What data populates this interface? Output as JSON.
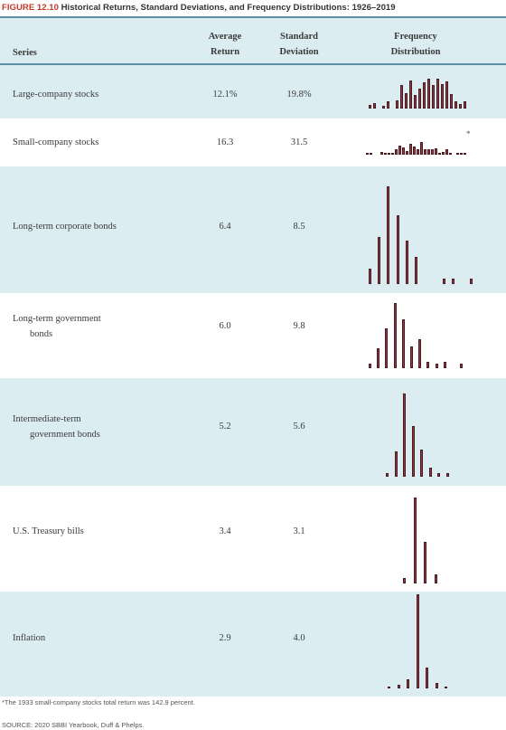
{
  "figure": {
    "number": "FIGURE 12.10",
    "title": "Historical Returns, Standard Deviations, and Frequency Distributions: 1926–2019"
  },
  "headers": {
    "series": "Series",
    "avg_return_l1": "Average",
    "avg_return_l2": "Return",
    "std_dev_l1": "Standard",
    "std_dev_l2": "Deviation",
    "freq_l1": "Frequency",
    "freq_l2": "Distribution"
  },
  "rows": [
    {
      "series_l1": "Large-company stocks",
      "series_l2": "",
      "avg": "12.1%",
      "sd": "19.8%",
      "bars": [
        0.08,
        0.12,
        0,
        0.06,
        0.14,
        0,
        0.16,
        0.48,
        0.32,
        0.58,
        0.28,
        0.4,
        0.54,
        0.62,
        0.48,
        0.62,
        0.5,
        0.56,
        0.3,
        0.14,
        0.1,
        0.14
      ]
    },
    {
      "series_l1": "Small-company stocks",
      "series_l2": "",
      "avg": "16.3",
      "sd": "31.5",
      "asterisk": "*",
      "bars": [
        0.04,
        0.04,
        0,
        0,
        0.08,
        0.04,
        0.04,
        0.06,
        0.16,
        0.28,
        0.22,
        0.12,
        0.34,
        0.26,
        0.16,
        0.4,
        0.16,
        0.18,
        0.18,
        0.2,
        0.02,
        0.08,
        0.16,
        0.02,
        0,
        0.04,
        0.04,
        0.04
      ]
    },
    {
      "series_l1": "Long-term corporate bonds",
      "series_l2": "",
      "avg": "6.4",
      "sd": "8.5",
      "bars": [
        0.16,
        0.48,
        1.0,
        0.7,
        0.44,
        0.28,
        0,
        0,
        0.06,
        0.06,
        0,
        0.06
      ]
    },
    {
      "series_l1": "Long-term government",
      "series_l2": "bonds",
      "avg": "6.0",
      "sd": "9.8",
      "bars": [
        0.06,
        0.26,
        0.52,
        0.86,
        0.64,
        0.28,
        0.38,
        0.08,
        0.06,
        0.08,
        0,
        0.06
      ]
    },
    {
      "series_l1": "Intermediate-term",
      "series_l2": "government bonds",
      "avg": "5.2",
      "sd": "5.6",
      "bars": [
        0.04,
        0.28,
        0.92,
        0.56,
        0.3,
        0.1,
        0.04,
        0.04
      ]
    },
    {
      "series_l1": "U.S. Treasury bills",
      "series_l2": "",
      "avg": "3.4",
      "sd": "3.1",
      "bars": [
        0.06,
        0.94,
        0.46,
        0.1
      ]
    },
    {
      "series_l1": "Inflation",
      "series_l2": "",
      "avg": "2.9",
      "sd": "4.0",
      "bars": [
        0.02,
        0.04,
        0.1,
        1.0,
        0.22,
        0.06,
        0.02
      ]
    }
  ],
  "footnote": "*The 1933 small-company stocks total return was 142.9 percent.",
  "source": "SOURCE: 2020 SBBI Yearbook, Duff & Phelps."
}
